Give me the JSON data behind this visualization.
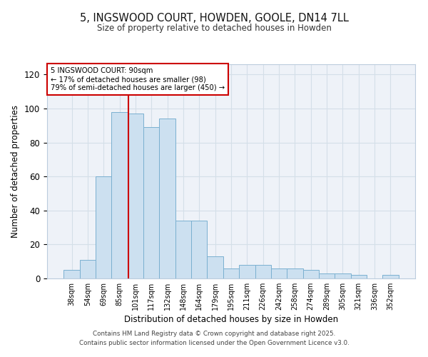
{
  "title": "5, INGSWOOD COURT, HOWDEN, GOOLE, DN14 7LL",
  "subtitle": "Size of property relative to detached houses in Howden",
  "bar_labels": [
    "38sqm",
    "54sqm",
    "69sqm",
    "85sqm",
    "101sqm",
    "117sqm",
    "132sqm",
    "148sqm",
    "164sqm",
    "179sqm",
    "195sqm",
    "211sqm",
    "226sqm",
    "242sqm",
    "258sqm",
    "274sqm",
    "289sqm",
    "305sqm",
    "321sqm",
    "336sqm",
    "352sqm"
  ],
  "bar_values": [
    5,
    11,
    60,
    98,
    97,
    89,
    94,
    34,
    34,
    13,
    6,
    8,
    8,
    6,
    6,
    5,
    3,
    3,
    2,
    0,
    2
  ],
  "bar_color": "#cce0f0",
  "bar_edge_color": "#7ab0d0",
  "bar_width": 1.0,
  "vline_x": 3.55,
  "vline_color": "#cc0000",
  "xlabel": "Distribution of detached houses by size in Howden",
  "ylabel": "Number of detached properties",
  "ylim": [
    0,
    126
  ],
  "yticks": [
    0,
    20,
    40,
    60,
    80,
    100,
    120
  ],
  "annotation_title": "5 INGSWOOD COURT: 90sqm",
  "annotation_line1": "← 17% of detached houses are smaller (98)",
  "annotation_line2": "79% of semi-detached houses are larger (450) →",
  "annotation_box_color": "#ffffff",
  "annotation_box_edge": "#cc0000",
  "grid_color": "#d4dfe8",
  "bg_color": "#eef2f8",
  "footer1": "Contains HM Land Registry data © Crown copyright and database right 2025.",
  "footer2": "Contains public sector information licensed under the Open Government Licence v3.0."
}
